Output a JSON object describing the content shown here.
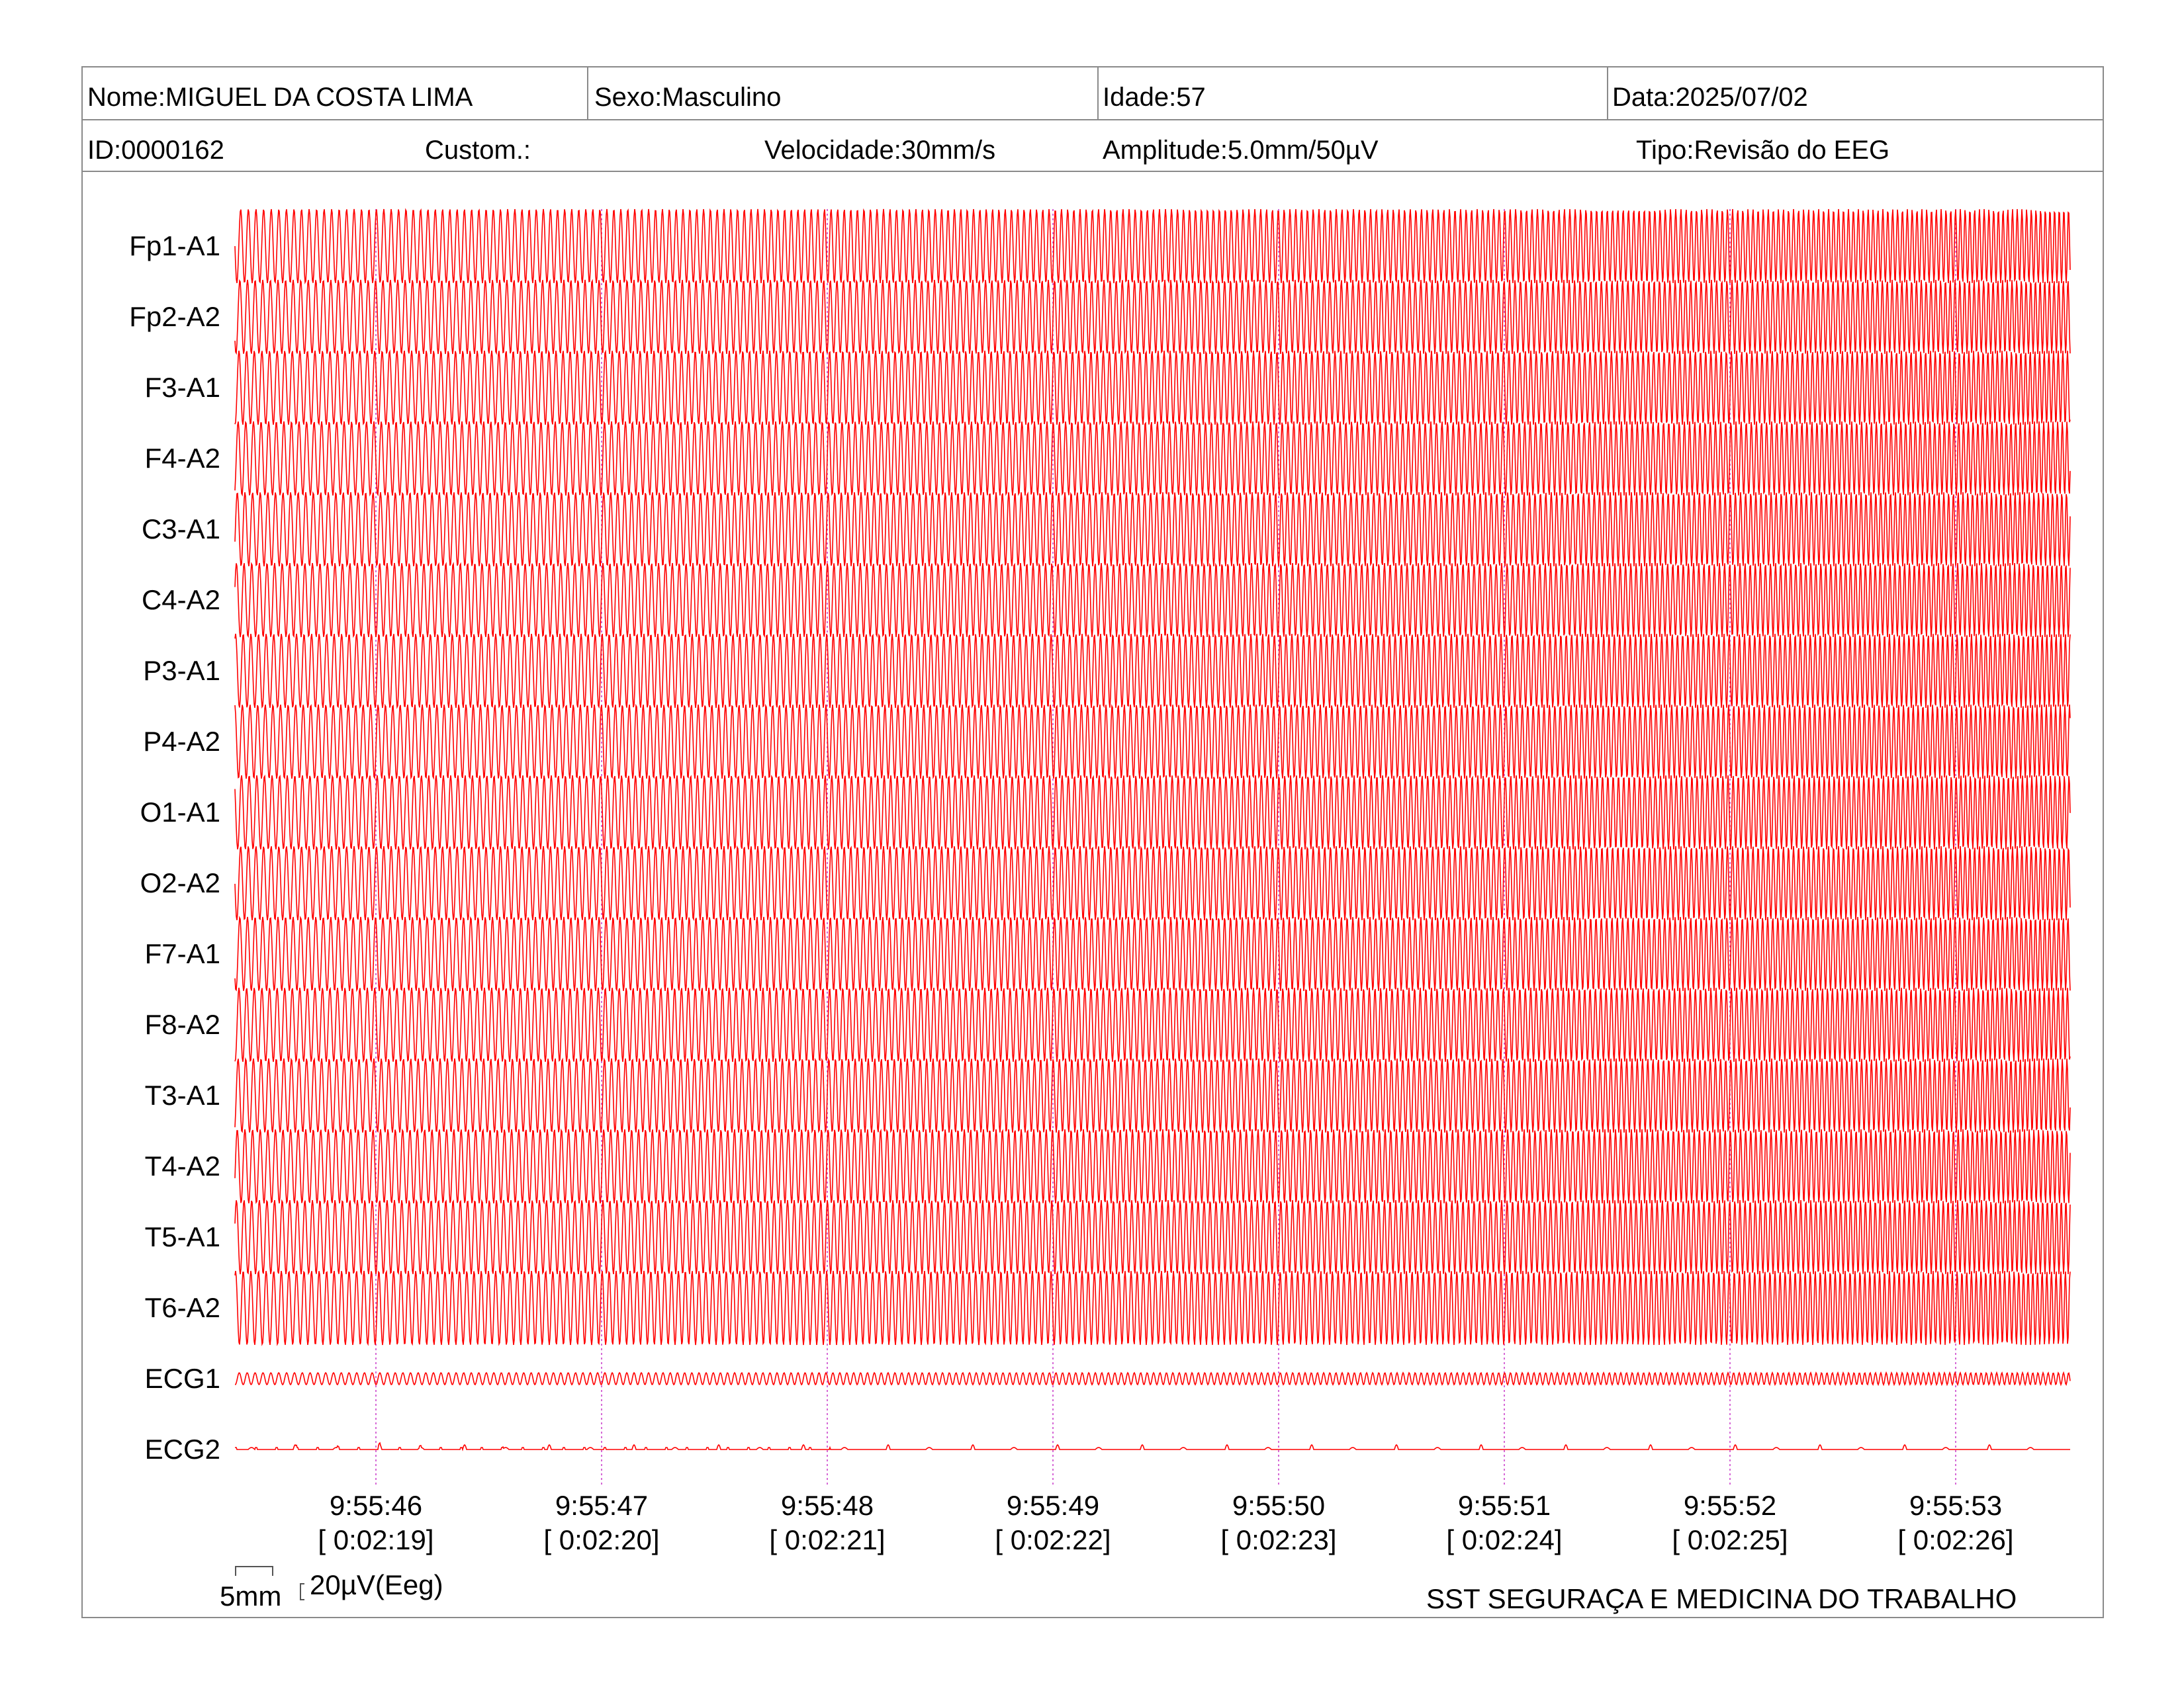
{
  "header": {
    "row1": [
      {
        "label": "Nome:MIGUEL DA COSTA LIMA"
      },
      {
        "label": "Sexo:Masculino"
      },
      {
        "label": "Idade:57"
      },
      {
        "label": "Data:2025/07/02"
      }
    ],
    "row2": [
      {
        "label": "ID:0000162"
      },
      {
        "label": "Custom.:"
      },
      {
        "label": "Velocidade:30mm/s"
      },
      {
        "label": "Amplitude:5.0mm/50µV"
      },
      {
        "label": "Tipo:Revisão do EEG"
      }
    ]
  },
  "chart_data": {
    "type": "line",
    "trace_color": "#ff0000",
    "marker_color": "#cc44cc",
    "channels": [
      {
        "name": "Fp1-A1",
        "kind": "eeg"
      },
      {
        "name": "Fp2-A2",
        "kind": "eeg"
      },
      {
        "name": "F3-A1",
        "kind": "eeg"
      },
      {
        "name": "F4-A2",
        "kind": "eeg"
      },
      {
        "name": "C3-A1",
        "kind": "eeg"
      },
      {
        "name": "C4-A2",
        "kind": "eeg"
      },
      {
        "name": "P3-A1",
        "kind": "eeg"
      },
      {
        "name": "P4-A2",
        "kind": "eeg"
      },
      {
        "name": "O1-A1",
        "kind": "eeg"
      },
      {
        "name": "O2-A2",
        "kind": "eeg"
      },
      {
        "name": "F7-A1",
        "kind": "eeg"
      },
      {
        "name": "F8-A2",
        "kind": "eeg"
      },
      {
        "name": "T3-A1",
        "kind": "eeg"
      },
      {
        "name": "T4-A2",
        "kind": "eeg"
      },
      {
        "name": "T5-A1",
        "kind": "eeg"
      },
      {
        "name": "T6-A2",
        "kind": "eeg"
      },
      {
        "name": "ECG1",
        "kind": "ecg1"
      },
      {
        "name": "ECG2",
        "kind": "ecg2"
      }
    ],
    "time_markers": [
      {
        "time": "9:55:46",
        "elapsed": "[ 0:02:19]"
      },
      {
        "time": "9:55:47",
        "elapsed": "[ 0:02:20]"
      },
      {
        "time": "9:55:48",
        "elapsed": "[ 0:02:21]"
      },
      {
        "time": "9:55:49",
        "elapsed": "[ 0:02:22]"
      },
      {
        "time": "9:55:50",
        "elapsed": "[ 0:02:23]"
      },
      {
        "time": "9:55:51",
        "elapsed": "[ 0:02:24]"
      },
      {
        "time": "9:55:52",
        "elapsed": "[ 0:02:25]"
      },
      {
        "time": "9:55:53",
        "elapsed": "[ 0:02:26]"
      }
    ]
  },
  "footer": {
    "scale_time": "5mm",
    "scale_amp": "20µV(Eeg)",
    "company": "SST SEGURAÇA E MEDICINA DO TRABALHO"
  }
}
